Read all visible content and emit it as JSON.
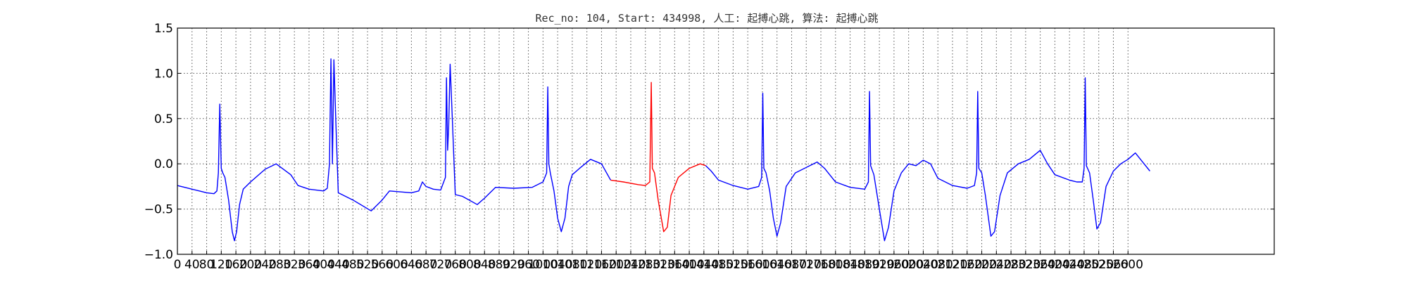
{
  "chart_data": {
    "type": "line",
    "title": "Rec_no: 104, Start: 434998, 人工: 起搏心跳, 算法: 起搏心跳",
    "xlabel": "",
    "ylabel": "",
    "xlim": [
      0,
      3000
    ],
    "ylim": [
      -1.0,
      1.5
    ],
    "grid": true,
    "x_tick_step": 40,
    "x_tick_labels": [
      "0",
      "40",
      "80",
      "120",
      "160",
      "200",
      "240",
      "280",
      "320",
      "360",
      "400",
      "440",
      "480",
      "520",
      "560",
      "600",
      "640",
      "680",
      "720",
      "760",
      "800",
      "840",
      "880",
      "920",
      "960",
      "1000",
      "1040",
      "1080",
      "1120",
      "1160",
      "1200",
      "1240",
      "1280",
      "1320",
      "1360",
      "1400",
      "1440",
      "1480",
      "1520",
      "1560",
      "1600",
      "1640",
      "1680",
      "1720",
      "1760",
      "1800",
      "1840",
      "1880",
      "1920",
      "1960",
      "2000",
      "2040",
      "2080",
      "2120",
      "2160",
      "2200",
      "2240",
      "2280",
      "2320",
      "2360",
      "2400",
      "2440",
      "2480",
      "2520",
      "2560",
      "2600"
    ],
    "y_ticks": [
      -1.0,
      -0.5,
      0.0,
      0.5,
      1.0,
      1.5
    ],
    "y_tick_labels": [
      "−1.0",
      "−0.5",
      "0.0",
      "0.5",
      "1.0",
      "1.5"
    ],
    "colors": {
      "normal": "#0000ff",
      "highlight": "#ff0000",
      "axis": "#000000"
    },
    "series": [
      {
        "color": "#0000ff",
        "points": [
          [
            0,
            -0.24
          ],
          [
            20,
            -0.26
          ],
          [
            40,
            -0.28
          ],
          [
            60,
            -0.3
          ],
          [
            80,
            -0.32
          ],
          [
            100,
            -0.33
          ],
          [
            108,
            -0.3
          ],
          [
            112,
            -0.1
          ],
          [
            116,
            0.66
          ],
          [
            120,
            -0.05
          ],
          [
            124,
            -0.1
          ],
          [
            130,
            -0.15
          ],
          [
            140,
            -0.4
          ],
          [
            150,
            -0.75
          ],
          [
            156,
            -0.85
          ],
          [
            162,
            -0.75
          ],
          [
            170,
            -0.45
          ],
          [
            180,
            -0.28
          ],
          [
            200,
            -0.2
          ],
          [
            240,
            -0.06
          ],
          [
            270,
            0.0
          ],
          [
            290,
            -0.06
          ],
          [
            310,
            -0.12
          ],
          [
            330,
            -0.24
          ],
          [
            360,
            -0.28
          ],
          [
            400,
            -0.3
          ],
          [
            410,
            -0.27
          ],
          [
            416,
            0.0
          ],
          [
            420,
            1.16
          ],
          [
            422,
            0.58
          ],
          [
            424,
            0.0
          ],
          [
            428,
            1.15
          ],
          [
            433,
            0.5
          ],
          [
            440,
            -0.32
          ],
          [
            480,
            -0.4
          ],
          [
            530,
            -0.52
          ],
          [
            560,
            -0.4
          ],
          [
            580,
            -0.3
          ],
          [
            640,
            -0.32
          ],
          [
            660,
            -0.3
          ],
          [
            670,
            -0.2
          ],
          [
            680,
            -0.25
          ],
          [
            700,
            -0.28
          ],
          [
            720,
            -0.29
          ],
          [
            733,
            -0.15
          ],
          [
            736,
            0.95
          ],
          [
            739,
            0.15
          ],
          [
            742,
            0.4
          ],
          [
            746,
            1.1
          ],
          [
            752,
            0.5
          ],
          [
            760,
            -0.34
          ],
          [
            780,
            -0.36
          ],
          [
            820,
            -0.45
          ],
          [
            840,
            -0.38
          ],
          [
            870,
            -0.26
          ],
          [
            920,
            -0.27
          ],
          [
            970,
            -0.26
          ],
          [
            1000,
            -0.2
          ],
          [
            1010,
            -0.1
          ],
          [
            1013,
            0.85
          ],
          [
            1016,
            0.0
          ],
          [
            1020,
            -0.1
          ],
          [
            1030,
            -0.3
          ],
          [
            1040,
            -0.6
          ],
          [
            1050,
            -0.75
          ],
          [
            1060,
            -0.6
          ],
          [
            1070,
            -0.25
          ],
          [
            1080,
            -0.12
          ],
          [
            1100,
            -0.05
          ],
          [
            1130,
            0.05
          ],
          [
            1160,
            0.0
          ],
          [
            1185,
            -0.18
          ]
        ]
      },
      {
        "color": "#ff0000",
        "points": [
          [
            1185,
            -0.18
          ],
          [
            1220,
            -0.2
          ],
          [
            1260,
            -0.23
          ],
          [
            1280,
            -0.24
          ],
          [
            1292,
            -0.2
          ],
          [
            1296,
            0.9
          ],
          [
            1299,
            -0.05
          ],
          [
            1305,
            -0.1
          ],
          [
            1315,
            -0.4
          ],
          [
            1330,
            -0.75
          ],
          [
            1340,
            -0.7
          ],
          [
            1350,
            -0.35
          ],
          [
            1370,
            -0.15
          ],
          [
            1400,
            -0.05
          ],
          [
            1430,
            0.0
          ],
          [
            1445,
            -0.02
          ]
        ]
      },
      {
        "color": "#0000ff",
        "points": [
          [
            1445,
            -0.02
          ],
          [
            1460,
            -0.08
          ],
          [
            1480,
            -0.18
          ],
          [
            1520,
            -0.24
          ],
          [
            1560,
            -0.28
          ],
          [
            1590,
            -0.25
          ],
          [
            1598,
            -0.15
          ],
          [
            1601,
            0.78
          ],
          [
            1604,
            -0.05
          ],
          [
            1610,
            -0.1
          ],
          [
            1620,
            -0.3
          ],
          [
            1630,
            -0.6
          ],
          [
            1640,
            -0.8
          ],
          [
            1650,
            -0.65
          ],
          [
            1665,
            -0.25
          ],
          [
            1690,
            -0.1
          ],
          [
            1730,
            -0.02
          ],
          [
            1750,
            0.02
          ],
          [
            1770,
            -0.05
          ],
          [
            1800,
            -0.2
          ],
          [
            1840,
            -0.26
          ],
          [
            1880,
            -0.28
          ],
          [
            1890,
            -0.2
          ],
          [
            1893,
            0.8
          ],
          [
            1896,
            -0.02
          ],
          [
            1905,
            -0.12
          ],
          [
            1920,
            -0.5
          ],
          [
            1934,
            -0.85
          ],
          [
            1945,
            -0.7
          ],
          [
            1960,
            -0.3
          ],
          [
            1980,
            -0.1
          ],
          [
            2000,
            0.0
          ],
          [
            2020,
            -0.02
          ],
          [
            2040,
            0.04
          ],
          [
            2060,
            0.0
          ],
          [
            2080,
            -0.16
          ],
          [
            2120,
            -0.24
          ],
          [
            2160,
            -0.27
          ],
          [
            2180,
            -0.24
          ],
          [
            2186,
            -0.1
          ],
          [
            2189,
            0.8
          ],
          [
            2192,
            -0.05
          ],
          [
            2200,
            -0.1
          ],
          [
            2210,
            -0.35
          ],
          [
            2225,
            -0.8
          ],
          [
            2235,
            -0.75
          ],
          [
            2250,
            -0.35
          ],
          [
            2270,
            -0.1
          ],
          [
            2300,
            0.0
          ],
          [
            2330,
            0.05
          ],
          [
            2360,
            0.15
          ],
          [
            2380,
            0.0
          ],
          [
            2400,
            -0.12
          ],
          [
            2440,
            -0.18
          ],
          [
            2460,
            -0.2
          ],
          [
            2475,
            -0.2
          ],
          [
            2480,
            -0.05
          ],
          [
            2483,
            0.95
          ],
          [
            2486,
            -0.02
          ],
          [
            2495,
            -0.1
          ],
          [
            2505,
            -0.4
          ],
          [
            2515,
            -0.72
          ],
          [
            2525,
            -0.65
          ],
          [
            2540,
            -0.25
          ],
          [
            2560,
            -0.08
          ],
          [
            2580,
            0.0
          ],
          [
            2600,
            0.05
          ],
          [
            2620,
            0.12
          ],
          [
            2640,
            0.02
          ],
          [
            2660,
            -0.08
          ]
        ]
      }
    ]
  }
}
